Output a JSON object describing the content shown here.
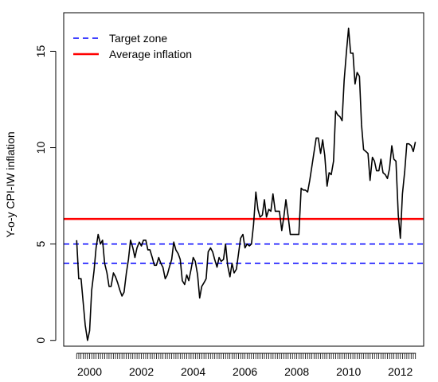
{
  "chart_data": {
    "type": "line",
    "ylabel": "Y-o-y CPI-IW inflation",
    "xlabel": "",
    "title": "",
    "x_range": [
      1999.0,
      2012.9
    ],
    "ylim": [
      -0.3,
      17
    ],
    "y_ticks": [
      0,
      5,
      10,
      15
    ],
    "x_ticks": [
      2000,
      2002,
      2004,
      2006,
      2008,
      2010,
      2012
    ],
    "x_minor_tick_step_months": 1,
    "x_minor_tick_range": [
      1999.5,
      2012.6
    ],
    "grid": false,
    "legend_position": "top-left",
    "legend": [
      {
        "label": "Target zone",
        "style": "dashed",
        "color": "#0000ff"
      },
      {
        "label": "Average inflation",
        "style": "solid",
        "color": "#ff0000"
      }
    ],
    "hlines": [
      {
        "series": "Target zone",
        "y": 4,
        "color": "#0000ff",
        "style": "dashed"
      },
      {
        "series": "Target zone",
        "y": 5,
        "color": "#0000ff",
        "style": "dashed"
      },
      {
        "series": "Average inflation",
        "y": 6.3,
        "color": "#ff0000",
        "style": "solid"
      }
    ],
    "series": [
      {
        "color": "#000000",
        "points": [
          [
            1999.5,
            5.2
          ],
          [
            1999.58,
            3.2
          ],
          [
            1999.67,
            3.2
          ],
          [
            1999.75,
            2.0
          ],
          [
            1999.83,
            0.8
          ],
          [
            1999.92,
            0.0
          ],
          [
            2000.0,
            0.5
          ],
          [
            2000.08,
            2.6
          ],
          [
            2000.17,
            3.6
          ],
          [
            2000.25,
            4.8
          ],
          [
            2000.33,
            5.5
          ],
          [
            2000.42,
            5.0
          ],
          [
            2000.5,
            5.2
          ],
          [
            2000.58,
            4.0
          ],
          [
            2000.67,
            3.5
          ],
          [
            2000.75,
            2.8
          ],
          [
            2000.83,
            2.8
          ],
          [
            2000.92,
            3.5
          ],
          [
            2001.0,
            3.3
          ],
          [
            2001.08,
            3.0
          ],
          [
            2001.17,
            2.6
          ],
          [
            2001.25,
            2.3
          ],
          [
            2001.33,
            2.5
          ],
          [
            2001.42,
            3.5
          ],
          [
            2001.5,
            4.2
          ],
          [
            2001.58,
            5.2
          ],
          [
            2001.67,
            4.8
          ],
          [
            2001.75,
            4.3
          ],
          [
            2001.83,
            4.8
          ],
          [
            2001.92,
            5.1
          ],
          [
            2002.0,
            4.9
          ],
          [
            2002.08,
            5.2
          ],
          [
            2002.17,
            5.2
          ],
          [
            2002.25,
            4.7
          ],
          [
            2002.33,
            4.7
          ],
          [
            2002.42,
            4.3
          ],
          [
            2002.5,
            3.9
          ],
          [
            2002.58,
            3.9
          ],
          [
            2002.67,
            4.3
          ],
          [
            2002.75,
            4.0
          ],
          [
            2002.83,
            3.8
          ],
          [
            2002.92,
            3.2
          ],
          [
            2003.0,
            3.4
          ],
          [
            2003.08,
            3.8
          ],
          [
            2003.17,
            4.2
          ],
          [
            2003.25,
            5.1
          ],
          [
            2003.33,
            4.7
          ],
          [
            2003.42,
            4.5
          ],
          [
            2003.5,
            4.2
          ],
          [
            2003.58,
            3.1
          ],
          [
            2003.67,
            2.9
          ],
          [
            2003.75,
            3.4
          ],
          [
            2003.83,
            3.1
          ],
          [
            2003.92,
            3.7
          ],
          [
            2004.0,
            4.3
          ],
          [
            2004.08,
            4.1
          ],
          [
            2004.17,
            3.4
          ],
          [
            2004.25,
            2.2
          ],
          [
            2004.33,
            2.8
          ],
          [
            2004.42,
            3.0
          ],
          [
            2004.5,
            3.2
          ],
          [
            2004.58,
            4.6
          ],
          [
            2004.67,
            4.8
          ],
          [
            2004.75,
            4.6
          ],
          [
            2004.83,
            4.2
          ],
          [
            2004.92,
            3.8
          ],
          [
            2005.0,
            4.3
          ],
          [
            2005.08,
            4.1
          ],
          [
            2005.17,
            4.2
          ],
          [
            2005.25,
            5.0
          ],
          [
            2005.33,
            3.9
          ],
          [
            2005.42,
            3.3
          ],
          [
            2005.5,
            4.0
          ],
          [
            2005.58,
            3.5
          ],
          [
            2005.67,
            3.7
          ],
          [
            2005.75,
            4.5
          ],
          [
            2005.83,
            5.3
          ],
          [
            2005.92,
            5.5
          ],
          [
            2006.0,
            4.8
          ],
          [
            2006.08,
            5.0
          ],
          [
            2006.17,
            4.9
          ],
          [
            2006.25,
            5.0
          ],
          [
            2006.33,
            6.0
          ],
          [
            2006.42,
            7.7
          ],
          [
            2006.5,
            6.8
          ],
          [
            2006.58,
            6.4
          ],
          [
            2006.67,
            6.5
          ],
          [
            2006.75,
            7.3
          ],
          [
            2006.83,
            6.4
          ],
          [
            2006.92,
            6.8
          ],
          [
            2007.0,
            6.7
          ],
          [
            2007.08,
            7.6
          ],
          [
            2007.17,
            6.7
          ],
          [
            2007.25,
            6.7
          ],
          [
            2007.33,
            6.7
          ],
          [
            2007.42,
            5.7
          ],
          [
            2007.5,
            6.4
          ],
          [
            2007.58,
            7.3
          ],
          [
            2007.67,
            6.4
          ],
          [
            2007.75,
            5.5
          ],
          [
            2007.83,
            5.5
          ],
          [
            2007.92,
            5.5
          ],
          [
            2008.0,
            5.5
          ],
          [
            2008.08,
            5.5
          ],
          [
            2008.17,
            7.9
          ],
          [
            2008.25,
            7.8
          ],
          [
            2008.33,
            7.8
          ],
          [
            2008.42,
            7.7
          ],
          [
            2008.5,
            8.3
          ],
          [
            2008.58,
            9.0
          ],
          [
            2008.67,
            9.8
          ],
          [
            2008.75,
            10.5
          ],
          [
            2008.83,
            10.5
          ],
          [
            2008.92,
            9.7
          ],
          [
            2009.0,
            10.4
          ],
          [
            2009.08,
            9.6
          ],
          [
            2009.17,
            8.0
          ],
          [
            2009.25,
            8.7
          ],
          [
            2009.33,
            8.6
          ],
          [
            2009.42,
            9.3
          ],
          [
            2009.5,
            11.9
          ],
          [
            2009.58,
            11.7
          ],
          [
            2009.67,
            11.6
          ],
          [
            2009.75,
            11.4
          ],
          [
            2009.83,
            13.5
          ],
          [
            2009.92,
            15.0
          ],
          [
            2010.0,
            16.2
          ],
          [
            2010.08,
            14.9
          ],
          [
            2010.17,
            14.9
          ],
          [
            2010.25,
            13.3
          ],
          [
            2010.33,
            13.9
          ],
          [
            2010.42,
            13.7
          ],
          [
            2010.5,
            11.2
          ],
          [
            2010.58,
            9.9
          ],
          [
            2010.67,
            9.8
          ],
          [
            2010.75,
            9.7
          ],
          [
            2010.83,
            8.3
          ],
          [
            2010.92,
            9.5
          ],
          [
            2011.0,
            9.3
          ],
          [
            2011.08,
            8.8
          ],
          [
            2011.17,
            8.8
          ],
          [
            2011.25,
            9.4
          ],
          [
            2011.33,
            8.7
          ],
          [
            2011.42,
            8.6
          ],
          [
            2011.5,
            8.4
          ],
          [
            2011.58,
            8.9
          ],
          [
            2011.67,
            10.1
          ],
          [
            2011.75,
            9.4
          ],
          [
            2011.83,
            9.3
          ],
          [
            2011.92,
            6.5
          ],
          [
            2012.0,
            5.3
          ],
          [
            2012.08,
            7.6
          ],
          [
            2012.17,
            8.8
          ],
          [
            2012.25,
            10.2
          ],
          [
            2012.33,
            10.2
          ],
          [
            2012.42,
            10.1
          ],
          [
            2012.5,
            9.8
          ],
          [
            2012.58,
            10.3
          ]
        ]
      }
    ]
  }
}
